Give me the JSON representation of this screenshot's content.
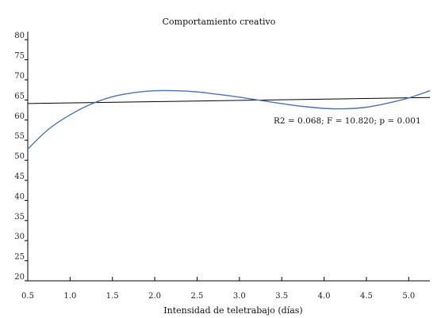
{
  "chart_data": {
    "type": "line",
    "title": "Comportamiento creativo",
    "xlabel": "Intensidad de teletrabajo (días)",
    "ylabel": "",
    "xlim": [
      0.5,
      5.25
    ],
    "ylim": [
      20,
      82
    ],
    "x_ticks": [
      0.5,
      1.0,
      1.5,
      2.0,
      2.5,
      3.0,
      3.5,
      4.0,
      4.5,
      5.0
    ],
    "x_tick_labels": [
      "0.5",
      "1.0",
      "1.5",
      "2.0",
      "2.5",
      "3.0",
      "3.5",
      "4.0",
      "4.5",
      "5.0"
    ],
    "y_ticks": [
      20,
      25,
      30,
      35,
      40,
      45,
      50,
      55,
      60,
      65,
      70,
      75,
      80
    ],
    "y_tick_labels": [
      "20",
      "25",
      "30",
      "35",
      "40",
      "45",
      "50",
      "55",
      "60",
      "65",
      "70",
      "75",
      "80"
    ],
    "grid": false,
    "annotation": "R2 = 0.068; F = 10.820; p = 0.001",
    "series": [
      {
        "color": "#000000",
        "x": [
          0.5,
          5.25
        ],
        "y": [
          64.1,
          65.6
        ]
      },
      {
        "color": "#4a72b0",
        "x": [
          0.5,
          0.75,
          1.0,
          1.25,
          1.5,
          1.75,
          2.0,
          2.25,
          2.5,
          2.75,
          3.0,
          3.25,
          3.5,
          3.75,
          4.0,
          4.25,
          4.5,
          4.75,
          5.0,
          5.25
        ],
        "y": [
          52.8,
          57.8,
          61.3,
          64.0,
          65.8,
          66.8,
          67.3,
          67.3,
          67.0,
          66.4,
          65.7,
          64.9,
          64.1,
          63.4,
          62.9,
          62.8,
          63.2,
          64.2,
          65.5,
          67.3
        ]
      }
    ]
  }
}
